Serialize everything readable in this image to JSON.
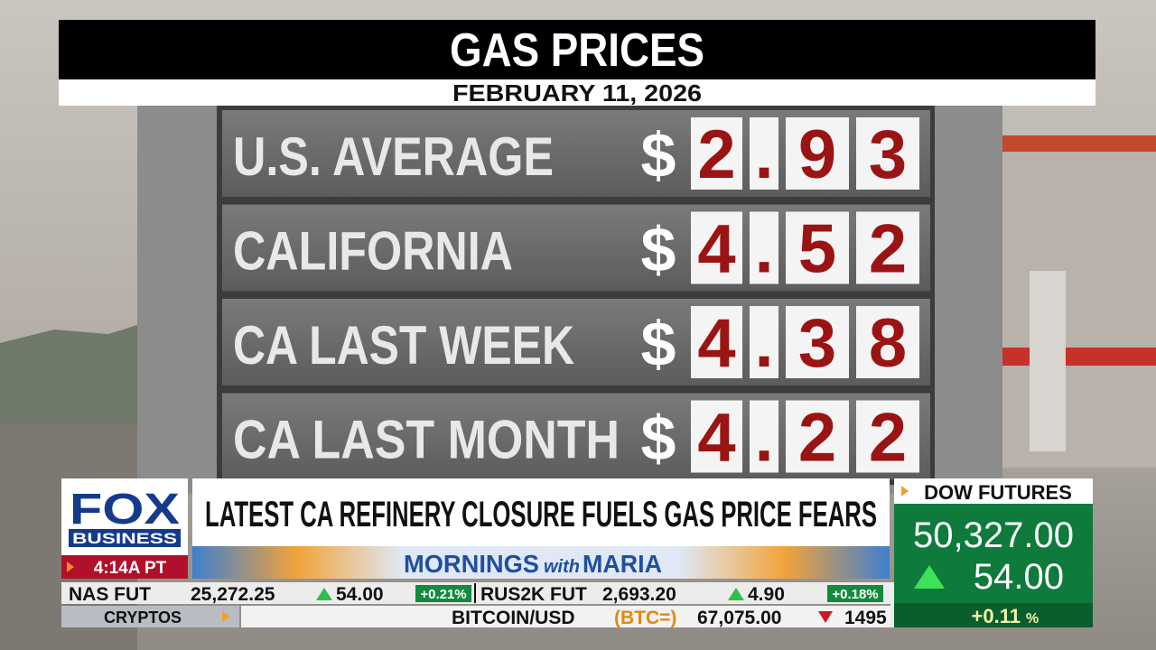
{
  "header": {
    "title": "GAS PRICES",
    "date": "FEBRUARY 11, 2026"
  },
  "board": {
    "rows": [
      {
        "label": "U.S. AVERAGE",
        "currency": "$",
        "price": [
          "2",
          ".",
          "9",
          "3"
        ]
      },
      {
        "label": "CALIFORNIA",
        "currency": "$",
        "price": [
          "4",
          ".",
          "5",
          "2"
        ]
      },
      {
        "label": "CA LAST WEEK",
        "currency": "$",
        "price": [
          "4",
          ".",
          "3",
          "8"
        ]
      },
      {
        "label": "CA LAST MONTH",
        "currency": "$",
        "price": [
          "4",
          ".",
          "2",
          "2"
        ]
      }
    ]
  },
  "lower_third": {
    "network": "FOX",
    "network_sub": "BUSINESS",
    "clock": "4:14A PT",
    "headline": "LATEST CA REFINERY CLOSURE FUELS GAS PRICE FEARS",
    "show": {
      "first": "MORNINGS",
      "middle": "with",
      "last": "MARIA"
    }
  },
  "ticker": {
    "items": [
      {
        "name": "NAS FUT",
        "price": "25,272.25",
        "change": "54.00",
        "percent": "+0.21%"
      },
      {
        "name": "RUS2K FUT",
        "price": "2,693.20",
        "change": "4.90",
        "percent": "+0.18%"
      }
    ],
    "crypto_label": "CRYPTOS",
    "crypto": {
      "name": "BITCOIN/USD",
      "symbol": "(BTC=)",
      "price": "67,075.00",
      "change": "1495"
    }
  },
  "market": {
    "title": "DOW FUTURES",
    "value": "50,327.00",
    "change": "54.00",
    "percent": "+0.11",
    "percent_sign": "%"
  }
}
